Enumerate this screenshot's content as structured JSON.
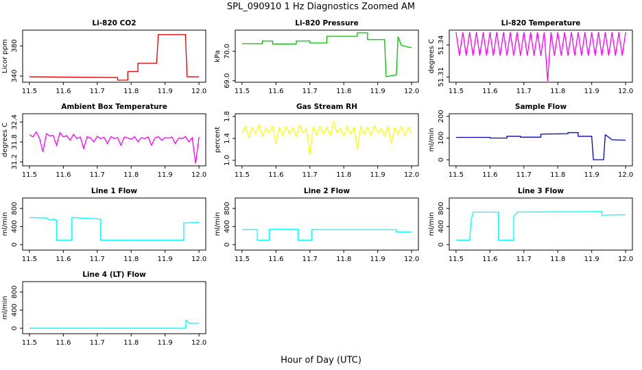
{
  "title": "SPL_090910  1 Hz Diagnostics Zoomed AM",
  "xlabel": "Hour of Day (UTC)",
  "chart_data": [
    {
      "type": "line",
      "title": "Li-820 CO2",
      "ylabel": "Licor ppm",
      "color": "#e00000",
      "xlim": [
        11.48,
        12.02
      ],
      "xticks": [
        11.5,
        11.6,
        11.7,
        11.8,
        11.9,
        {
          "value": 12,
          "label": "12.0"
        }
      ],
      "ylim": [
        331.8,
        400.9
      ],
      "yticks": [
        340,
        380
      ],
      "x": [
        11.5,
        11.76,
        11.76,
        11.79,
        11.79,
        11.82,
        11.82,
        11.875,
        11.88,
        11.96,
        11.965,
        12.0
      ],
      "values": [
        339,
        338,
        334.5,
        334.5,
        346,
        346,
        357,
        357,
        395,
        395,
        339,
        339
      ]
    },
    {
      "type": "line",
      "title": "Li-820 Pressure",
      "ylabel": "kPa",
      "color": "#00c000",
      "xlim": [
        11.48,
        12.02
      ],
      "xticks": [
        11.5,
        11.6,
        11.7,
        11.8,
        11.9,
        {
          "value": 12,
          "label": "12.0"
        }
      ],
      "ylim": [
        68.95,
        70.72
      ],
      "yticks": [
        {
          "value": 69,
          "label": "69.0"
        },
        {
          "value": 70,
          "label": "70.0"
        }
      ],
      "x": [
        11.5,
        11.56,
        11.56,
        11.59,
        11.59,
        11.66,
        11.66,
        11.7,
        11.7,
        11.75,
        11.75,
        11.84,
        11.84,
        11.87,
        11.87,
        11.92,
        11.925,
        11.955,
        11.96,
        11.97,
        12.0
      ],
      "values": [
        70.26,
        70.26,
        70.35,
        70.35,
        70.25,
        70.25,
        70.35,
        70.35,
        70.28,
        70.28,
        70.51,
        70.51,
        70.63,
        70.63,
        70.4,
        70.4,
        69.14,
        69.2,
        70.5,
        70.2,
        70.12
      ]
    },
    {
      "type": "line",
      "title": "Li-820 Temperature",
      "ylabel": "degrees C",
      "color": "#ff00ff",
      "xlim": [
        11.48,
        12.02
      ],
      "xticks": [
        11.5,
        11.6,
        11.7,
        11.8,
        11.9,
        {
          "value": 12,
          "label": "12.0"
        }
      ],
      "ylim": [
        51.305,
        51.354
      ],
      "yticks": [
        51.31,
        51.34
      ],
      "x": [
        11.5,
        11.51,
        11.52,
        11.53,
        11.54,
        11.55,
        11.56,
        11.57,
        11.58,
        11.59,
        11.6,
        11.61,
        11.62,
        11.63,
        11.64,
        11.65,
        11.66,
        11.67,
        11.68,
        11.69,
        11.7,
        11.71,
        11.72,
        11.73,
        11.74,
        11.75,
        11.76,
        11.77,
        11.78,
        11.79,
        11.8,
        11.81,
        11.82,
        11.83,
        11.84,
        11.85,
        11.86,
        11.87,
        11.88,
        11.89,
        11.9,
        11.91,
        11.92,
        11.93,
        11.94,
        11.95,
        11.96,
        11.97,
        11.98,
        11.99,
        12.0
      ],
      "values": [
        51.352,
        51.33,
        51.352,
        51.33,
        51.352,
        51.33,
        51.352,
        51.33,
        51.352,
        51.33,
        51.352,
        51.33,
        51.352,
        51.33,
        51.352,
        51.33,
        51.352,
        51.33,
        51.352,
        51.33,
        51.352,
        51.33,
        51.352,
        51.33,
        51.352,
        51.33,
        51.352,
        51.306,
        51.352,
        51.33,
        51.352,
        51.33,
        51.352,
        51.33,
        51.352,
        51.33,
        51.352,
        51.33,
        51.352,
        51.33,
        51.352,
        51.33,
        51.352,
        51.33,
        51.352,
        51.33,
        51.352,
        51.33,
        51.352,
        51.33,
        51.352
      ]
    },
    {
      "type": "line",
      "title": "Ambient Box Temperature",
      "ylabel": "degrees C",
      "color": "#ff00ff",
      "xlim": [
        11.48,
        12.02
      ],
      "xticks": [
        11.5,
        11.6,
        11.7,
        11.8,
        11.9,
        {
          "value": 12,
          "label": "12.0"
        }
      ],
      "ylim": [
        31.08,
        32.65
      ],
      "yticks": [
        31.2,
        31.8,
        32.4
      ],
      "x": [
        11.5,
        11.51,
        11.52,
        11.53,
        11.54,
        11.55,
        11.56,
        11.57,
        11.58,
        11.59,
        11.6,
        11.61,
        11.62,
        11.63,
        11.64,
        11.65,
        11.66,
        11.67,
        11.68,
        11.69,
        11.7,
        11.71,
        11.72,
        11.73,
        11.74,
        11.75,
        11.76,
        11.77,
        11.78,
        11.79,
        11.8,
        11.81,
        11.82,
        11.83,
        11.84,
        11.85,
        11.86,
        11.87,
        11.88,
        11.89,
        11.9,
        11.91,
        11.92,
        11.93,
        11.94,
        11.95,
        11.96,
        11.97,
        11.98,
        11.99,
        12.0
      ],
      "values": [
        32.02,
        31.95,
        32.1,
        31.9,
        31.5,
        32.05,
        31.98,
        32.0,
        31.7,
        32.08,
        31.95,
        31.99,
        31.85,
        32.03,
        31.9,
        31.95,
        31.6,
        31.96,
        31.92,
        31.8,
        31.97,
        31.9,
        31.94,
        31.75,
        31.96,
        31.9,
        31.93,
        31.7,
        31.95,
        31.92,
        31.88,
        31.96,
        31.8,
        31.93,
        31.9,
        31.95,
        31.7,
        31.92,
        31.96,
        31.85,
        31.93,
        31.91,
        31.95,
        31.75,
        31.92,
        31.9,
        31.96,
        31.8,
        31.93,
        31.15,
        31.95
      ]
    },
    {
      "type": "line",
      "title": "Gas Stream RH",
      "ylabel": "percent",
      "color": "#ffff00",
      "xlim": [
        11.48,
        12.02
      ],
      "xticks": [
        11.5,
        11.6,
        11.7,
        11.8,
        11.9,
        {
          "value": 12,
          "label": "12.0"
        }
      ],
      "ylim": [
        0.9,
        1.85
      ],
      "yticks": [
        {
          "value": 1,
          "label": "1.0"
        },
        1.4,
        1.8
      ],
      "x": [
        11.5,
        11.51,
        11.52,
        11.53,
        11.54,
        11.55,
        11.56,
        11.57,
        11.58,
        11.59,
        11.6,
        11.61,
        11.62,
        11.63,
        11.64,
        11.65,
        11.66,
        11.67,
        11.68,
        11.69,
        11.7,
        11.71,
        11.72,
        11.73,
        11.74,
        11.75,
        11.76,
        11.77,
        11.78,
        11.79,
        11.8,
        11.81,
        11.82,
        11.83,
        11.84,
        11.85,
        11.86,
        11.87,
        11.88,
        11.89,
        11.9,
        11.91,
        11.92,
        11.93,
        11.94,
        11.95,
        11.96,
        11.97,
        11.98,
        11.99,
        12.0
      ],
      "values": [
        1.5,
        1.62,
        1.42,
        1.6,
        1.48,
        1.65,
        1.44,
        1.58,
        1.5,
        1.63,
        1.3,
        1.6,
        1.45,
        1.62,
        1.48,
        1.6,
        1.43,
        1.64,
        1.5,
        1.58,
        1.1,
        1.6,
        1.46,
        1.62,
        1.48,
        1.6,
        1.45,
        1.7,
        1.5,
        1.58,
        1.44,
        1.62,
        1.48,
        1.6,
        1.2,
        1.62,
        1.47,
        1.6,
        1.45,
        1.63,
        1.5,
        1.58,
        1.44,
        1.62,
        1.3,
        1.6,
        1.48,
        1.62,
        1.45,
        1.6,
        1.5
      ]
    },
    {
      "type": "line",
      "title": "Sample Flow",
      "ylabel": "ml/min",
      "color": "#0000c0",
      "xlim": [
        11.48,
        12.02
      ],
      "xticks": [
        11.5,
        11.6,
        11.7,
        11.8,
        11.9,
        {
          "value": 12,
          "label": "12.0"
        }
      ],
      "ylim": [
        -28,
        212
      ],
      "yticks": [
        0,
        100,
        200
      ],
      "x": [
        11.5,
        11.6,
        11.6,
        11.65,
        11.65,
        11.69,
        11.69,
        11.75,
        11.75,
        11.83,
        11.83,
        11.86,
        11.86,
        11.9,
        11.905,
        11.935,
        11.94,
        11.945,
        11.96,
        12.0
      ],
      "values": [
        103,
        103,
        100,
        100,
        108,
        108,
        104,
        104,
        118,
        120,
        125,
        125,
        108,
        108,
        0,
        0,
        115,
        110,
        92,
        90
      ]
    },
    {
      "type": "line",
      "title": "Line 1 Flow",
      "ylabel": "ml/min",
      "color": "#00ffff",
      "xlim": [
        11.48,
        12.02
      ],
      "xticks": [
        11.5,
        11.6,
        11.7,
        11.8,
        11.9,
        {
          "value": 12,
          "label": "12.0"
        }
      ],
      "ylim": [
        -120,
        1030
      ],
      "yticks": [
        0,
        400,
        800
      ],
      "x": [
        11.5,
        11.55,
        11.56,
        11.57,
        11.575,
        11.58,
        11.58,
        11.625,
        11.625,
        11.65,
        11.7,
        11.71,
        11.71,
        11.955,
        11.955,
        12.0
      ],
      "values": [
        600,
        590,
        540,
        560,
        560,
        540,
        100,
        100,
        600,
        590,
        570,
        560,
        100,
        100,
        480,
        490
      ]
    },
    {
      "type": "line",
      "title": "Line 2 Flow",
      "ylabel": "ml/min",
      "color": "#00ffff",
      "xlim": [
        11.48,
        12.02
      ],
      "xticks": [
        11.5,
        11.6,
        11.7,
        11.8,
        11.9,
        {
          "value": 12,
          "label": "12.0"
        }
      ],
      "ylim": [
        -120,
        1030
      ],
      "yticks": [
        0,
        400,
        800
      ],
      "x": [
        11.5,
        11.545,
        11.545,
        11.58,
        11.58,
        11.665,
        11.665,
        11.705,
        11.705,
        11.955,
        11.955,
        12.0
      ],
      "values": [
        330,
        330,
        100,
        100,
        340,
        340,
        100,
        100,
        330,
        330,
        280,
        280
      ]
    },
    {
      "type": "line",
      "title": "Line 3 Flow",
      "ylabel": "ml/min",
      "color": "#00ffff",
      "xlim": [
        11.48,
        12.02
      ],
      "xticks": [
        11.5,
        11.6,
        11.7,
        11.8,
        11.9,
        {
          "value": 12,
          "label": "12.0"
        }
      ],
      "ylim": [
        -120,
        1030
      ],
      "yticks": [
        0,
        400,
        800
      ],
      "x": [
        11.5,
        11.54,
        11.545,
        11.55,
        11.625,
        11.625,
        11.67,
        11.67,
        11.68,
        11.93,
        11.93,
        12.0
      ],
      "values": [
        100,
        100,
        560,
        720,
        720,
        100,
        100,
        620,
        720,
        730,
        650,
        660
      ]
    },
    {
      "type": "line",
      "title": "Line 4 (LT) Flow",
      "ylabel": "ml/min",
      "color": "#00ffff",
      "xlim": [
        11.48,
        12.02
      ],
      "xticks": [
        11.5,
        11.6,
        11.7,
        11.8,
        11.9,
        {
          "value": 12,
          "label": "12.0"
        }
      ],
      "ylim": [
        -120,
        1030
      ],
      "yticks": [
        0,
        400,
        800
      ],
      "x": [
        11.5,
        11.96,
        11.962,
        11.97,
        12.0
      ],
      "values": [
        0,
        0,
        180,
        110,
        110
      ]
    }
  ]
}
